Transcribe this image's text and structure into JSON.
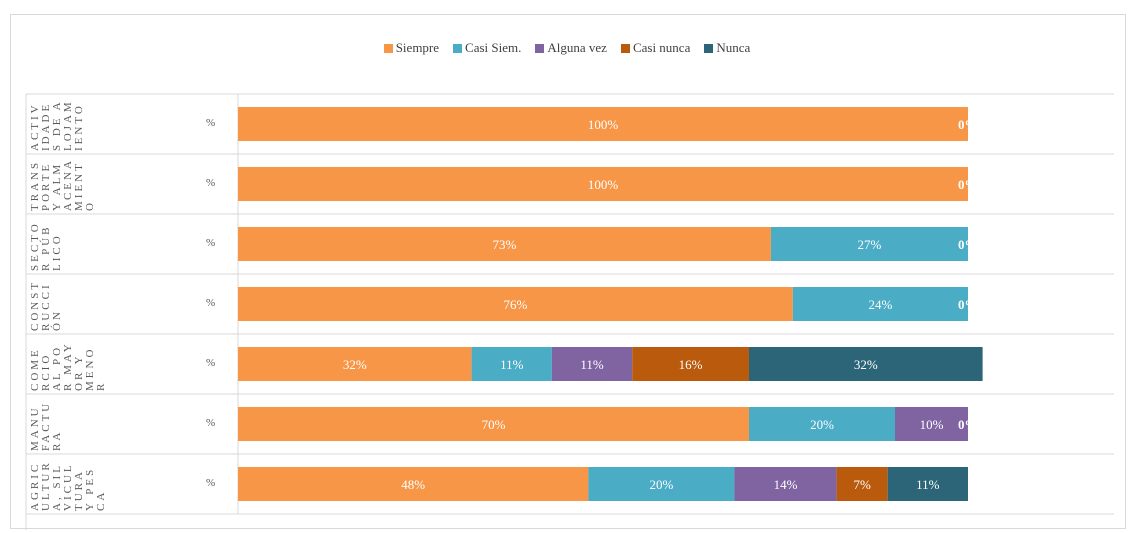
{
  "chart_data": {
    "type": "bar",
    "orientation": "horizontal",
    "stacked": "percent",
    "legend_position": "top",
    "series": [
      {
        "name": "Siempre",
        "color": "#f79646",
        "label_color": "#ffffff"
      },
      {
        "name": "Casi Siem.",
        "color": "#4bacc6",
        "label_color": "#ffffff"
      },
      {
        "name": "Alguna vez",
        "color": "#8064a2",
        "label_color": "#ffffff"
      },
      {
        "name": "Casi nunca",
        "color": "#b95a0d",
        "label_color": "#ffffff"
      },
      {
        "name": "Nunca",
        "color": "#2b6577",
        "label_color": "#ffffff"
      }
    ],
    "categories": [
      {
        "name": "ACTIVIDADES DE ALOJAMIENTO",
        "unit": "%",
        "values": [
          100,
          0,
          0,
          0,
          0
        ],
        "labels": [
          "100%",
          "",
          "",
          "",
          "0%"
        ]
      },
      {
        "name": "TRANSPORTE Y ALMACENAMIENTO",
        "unit": "%",
        "values": [
          100,
          0,
          0,
          0,
          0
        ],
        "labels": [
          "100%",
          "",
          "",
          "",
          "0%"
        ]
      },
      {
        "name": "SECTOR PÚBLICO",
        "unit": "%",
        "values": [
          73,
          27,
          0,
          0,
          0
        ],
        "labels": [
          "73%",
          "27%",
          "",
          "",
          "0%"
        ]
      },
      {
        "name": "CONSTRUCCIÓN",
        "unit": "%",
        "values": [
          76,
          24,
          0,
          0,
          0
        ],
        "labels": [
          "76%",
          "24%",
          "",
          "",
          "0%"
        ]
      },
      {
        "name": "COMERCIO AL POR MAYOR Y MENOR",
        "unit": "%",
        "values": [
          32,
          11,
          11,
          16,
          32
        ],
        "labels": [
          "32%",
          "11%",
          "11%",
          "16%",
          "32%"
        ]
      },
      {
        "name": "MANUFACTURA",
        "unit": "%",
        "values": [
          70,
          20,
          10,
          0,
          0
        ],
        "labels": [
          "70%",
          "20%",
          "10%",
          "",
          "0%"
        ]
      },
      {
        "name": "AGRICULTURA, SILVICULTURA Y PESCA",
        "unit": "%",
        "values": [
          48,
          20,
          14,
          7,
          11
        ],
        "labels": [
          "48%",
          "20%",
          "14%",
          "7%",
          "11%"
        ]
      }
    ],
    "xlim": [
      0,
      100
    ],
    "grid": false
  }
}
